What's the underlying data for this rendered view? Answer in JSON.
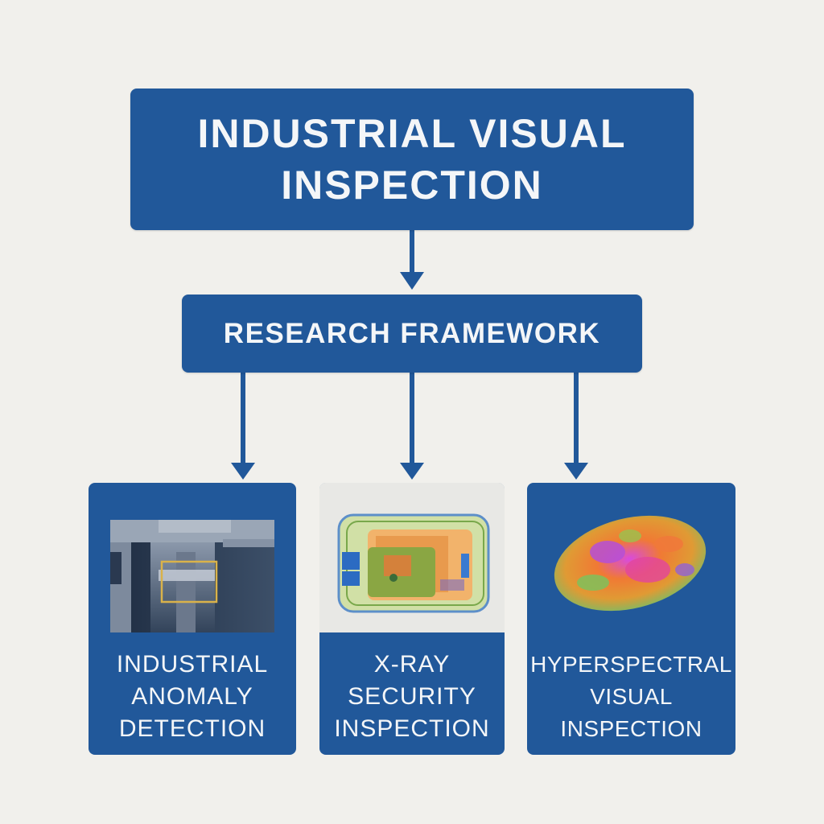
{
  "diagram": {
    "root": {
      "label": "INDUSTRIAL VISUAL\nINSPECTION"
    },
    "framework": {
      "label": "RESEARCH FRAMEWORK"
    },
    "branches": [
      {
        "label": "INDUSTRIAL\nANOMALY\nDETECTION",
        "image": "industrial-xray-part-image"
      },
      {
        "label": "X-RAY\nSECURITY\nINSPECTION",
        "image": "xray-baggage-scan-image"
      },
      {
        "label": "HYPERSPECTRAL\nVISUAL\nINSPECTION",
        "image": "hyperspectral-grain-image"
      }
    ]
  },
  "colors": {
    "box": "#21589a",
    "background": "#f1f0ec",
    "highlight_box": "#d9b24a"
  }
}
